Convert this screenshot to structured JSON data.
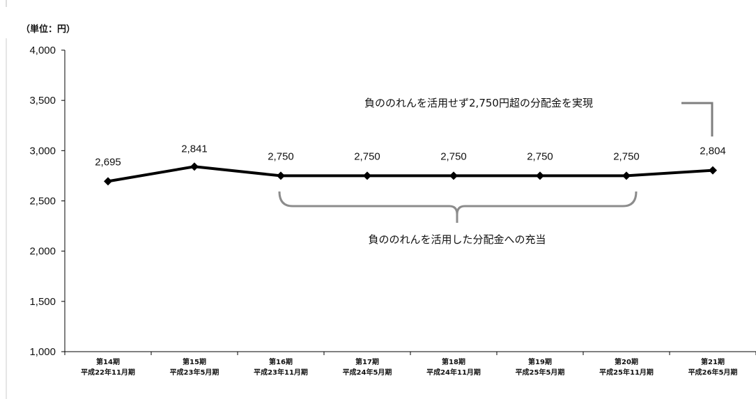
{
  "unit_label": "（単位：円）",
  "chart_data": {
    "type": "line",
    "categories": [
      [
        "第14期",
        "平成22年11月期"
      ],
      [
        "第15期",
        "平成23年5月期"
      ],
      [
        "第16期",
        "平成23年11月期"
      ],
      [
        "第17期",
        "平成24年5月期"
      ],
      [
        "第18期",
        "平成24年11月期"
      ],
      [
        "第19期",
        "平成25年5月期"
      ],
      [
        "第20期",
        "平成25年11月期"
      ],
      [
        "第21期",
        "平成26年5月期"
      ]
    ],
    "values": [
      2695,
      2841,
      2750,
      2750,
      2750,
      2750,
      2750,
      2804
    ],
    "data_labels": [
      "2,695",
      "2,841",
      "2,750",
      "2,750",
      "2,750",
      "2,750",
      "2,750",
      "2,804"
    ],
    "ylim": [
      1000,
      4000
    ],
    "yticks": [
      1000,
      1500,
      2000,
      2500,
      3000,
      3500,
      4000
    ],
    "ytick_labels": [
      "1,000",
      "1,500",
      "2,000",
      "2,500",
      "3,000",
      "3,500",
      "4,000"
    ],
    "grid": false,
    "line_color": "#000000",
    "annotations": {
      "top_callout": "負ののれんを活用せず2,750円超の分配金を実現",
      "brace_label": "負ののれんを活用した分配金への充当"
    }
  }
}
